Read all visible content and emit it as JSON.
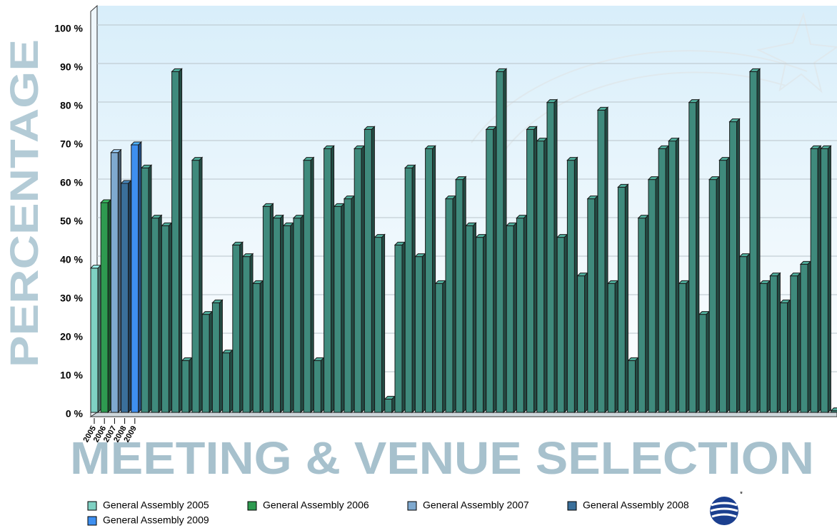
{
  "chart_data": {
    "type": "bar3d",
    "y_label": "PERCENTAGE",
    "annotation": "MEETING & VENUE SELECTION",
    "categories": [
      "2005",
      "2006",
      "2007",
      "2008",
      "2009",
      null,
      null,
      null,
      null,
      null,
      null,
      null,
      null,
      null,
      null,
      null,
      null,
      null,
      null,
      null,
      null,
      null,
      null,
      null,
      null,
      null,
      null,
      null,
      null,
      null,
      null,
      null,
      null,
      null,
      null,
      null,
      null,
      null,
      null,
      null,
      null,
      null,
      null,
      null,
      null,
      null,
      null,
      null,
      null,
      null,
      null,
      null,
      null,
      null,
      null,
      null,
      null,
      null,
      null,
      null,
      null,
      null,
      null,
      null,
      null,
      null,
      null,
      null,
      null,
      null,
      null,
      null,
      null,
      null
    ],
    "values": [
      38,
      55,
      68,
      60,
      70,
      64,
      51,
      49,
      89,
      14,
      66,
      26,
      29,
      16,
      44,
      41,
      34,
      54,
      51,
      49,
      51,
      66,
      14,
      69,
      54,
      56,
      69,
      74,
      46,
      4,
      44,
      64,
      41,
      69,
      34,
      56,
      61,
      49,
      46,
      74,
      89,
      49,
      51,
      74,
      71,
      81,
      46,
      66,
      36,
      56,
      79,
      34,
      59,
      14,
      51,
      61,
      69,
      71,
      34,
      81,
      26,
      61,
      66,
      76,
      41,
      89,
      34,
      36,
      29,
      36,
      39,
      69,
      69,
      1
    ],
    "bar_colors": [
      "#7fd1c3",
      "#2e9a50",
      "#7fa9cf",
      "#3a6f9a",
      "#3e8ff0"
    ],
    "color": "#3f8a7c",
    "legend": [
      "General Assembly 2005",
      "General Assembly 2006",
      "General Assembly 2007",
      "General Assembly 2008",
      "General Assembly 2009"
    ],
    "ylim": [
      0,
      100
    ],
    "yticks": [
      {
        "value": 0,
        "label": "0 %"
      },
      {
        "value": 10,
        "label": "10 %"
      },
      {
        "value": 20,
        "label": "20 %"
      },
      {
        "value": 30,
        "label": "30 %"
      },
      {
        "value": 40,
        "label": "40 %"
      },
      {
        "value": 50,
        "label": "50 %"
      },
      {
        "value": 60,
        "label": "60 %"
      },
      {
        "value": 70,
        "label": "70 %"
      },
      {
        "value": 80,
        "label": "80 %"
      },
      {
        "value": 90,
        "label": "90 %"
      },
      {
        "value": 100,
        "label": "100 %"
      }
    ],
    "grid": true
  }
}
